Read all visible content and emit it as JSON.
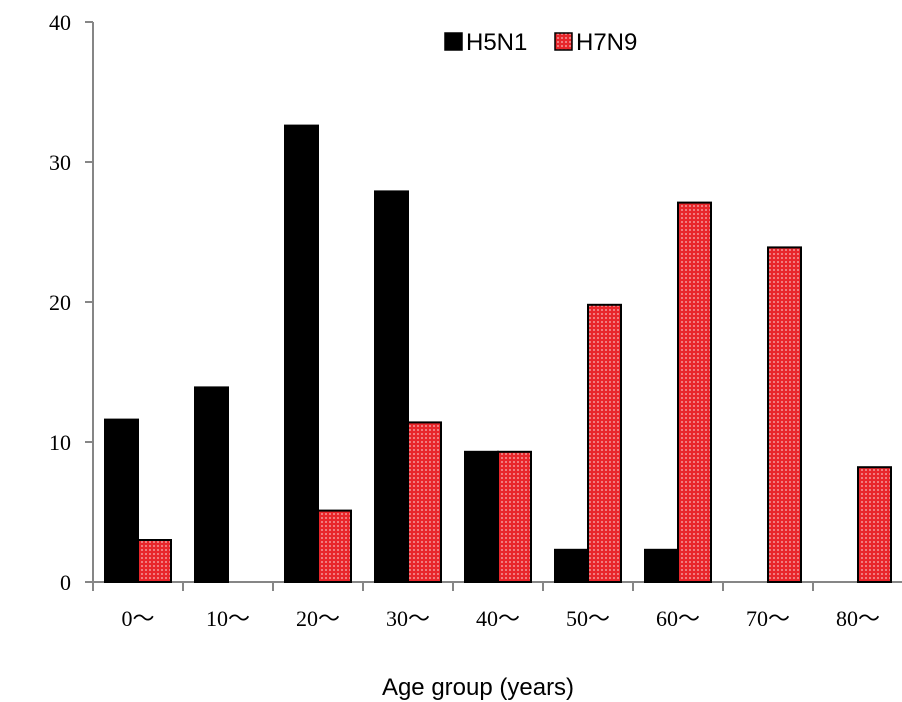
{
  "chart_data": {
    "type": "bar",
    "title": "",
    "xlabel": "Age group (years)",
    "ylabel": "",
    "ylim": [
      0,
      40
    ],
    "yticks": [
      0,
      10,
      20,
      30,
      40
    ],
    "categories": [
      "0～",
      "10～",
      "20～",
      "30～",
      "40～",
      "50～",
      "60～",
      "70～",
      "80～"
    ],
    "series": [
      {
        "name": "H5N1",
        "color": "#000000",
        "pattern": "solid",
        "values": [
          11.6,
          13.9,
          32.6,
          27.9,
          9.3,
          2.3,
          2.3,
          0,
          0
        ]
      },
      {
        "name": "H7N9",
        "color": "#e8262b",
        "pattern": "dotted",
        "values": [
          3.0,
          0,
          5.1,
          11.4,
          9.3,
          19.8,
          27.1,
          23.9,
          8.2
        ]
      }
    ],
    "legend_position": "top-right",
    "grid": false
  }
}
